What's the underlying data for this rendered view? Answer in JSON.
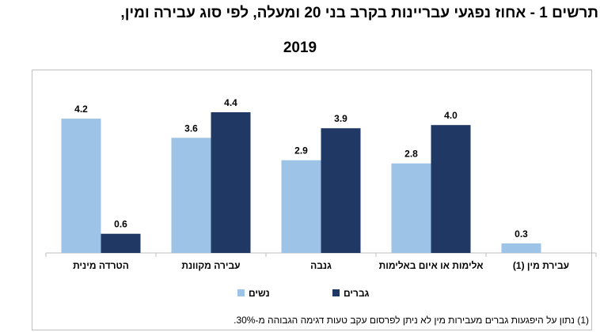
{
  "chart_data": {
    "type": "bar",
    "title": "תרשים 1 - אחוז נפגעי עבריינות בקרב בני 20 ומעלה, לפי סוג עבירה ומין,",
    "subtitle": "2019",
    "categories": [
      "הטרדה מינית",
      "עבירה מקוונת",
      "גנבה",
      "אלימות או איום באלימות",
      "עבירת מין (1)"
    ],
    "series": [
      {
        "name": "נשים",
        "color": "#9dc3e6",
        "values": [
          4.2,
          3.6,
          2.9,
          2.8,
          0.3
        ]
      },
      {
        "name": "גברים",
        "color": "#1f3864",
        "values": [
          0.6,
          4.4,
          3.9,
          4.0,
          null
        ]
      }
    ],
    "ylim": [
      0,
      4.4
    ],
    "grid": false,
    "legend": "bottom",
    "footnote": "(1) נתון על היפגעות גברים מעבירות מין לא ניתן לפרסום עקב טעות דגימה הגבוהה מ-30%."
  }
}
